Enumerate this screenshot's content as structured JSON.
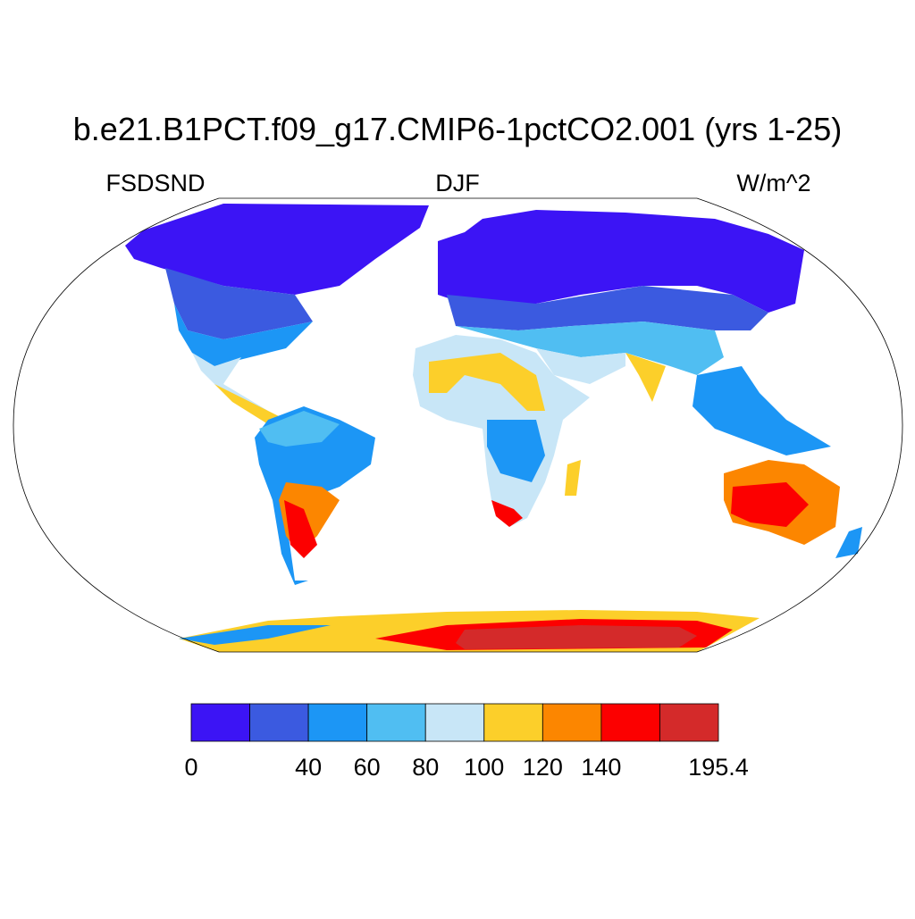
{
  "title": "b.e21.B1PCT.f09_g17.CMIP6-1pctCO2.001 (yrs 1-25)",
  "subtitles": {
    "left": "FSDSND",
    "center": "DJF",
    "right": "W/m^2"
  },
  "colorbar": {
    "levels": [
      0,
      null,
      40,
      60,
      80,
      100,
      120,
      140,
      null,
      195.4
    ],
    "colors": [
      "#3c14f5",
      "#3b5ae0",
      "#1c96f5",
      "#50bef2",
      "#c8e6f7",
      "#fccf2a",
      "#fc8600",
      "#fc0000",
      "#d42a2a"
    ]
  }
}
